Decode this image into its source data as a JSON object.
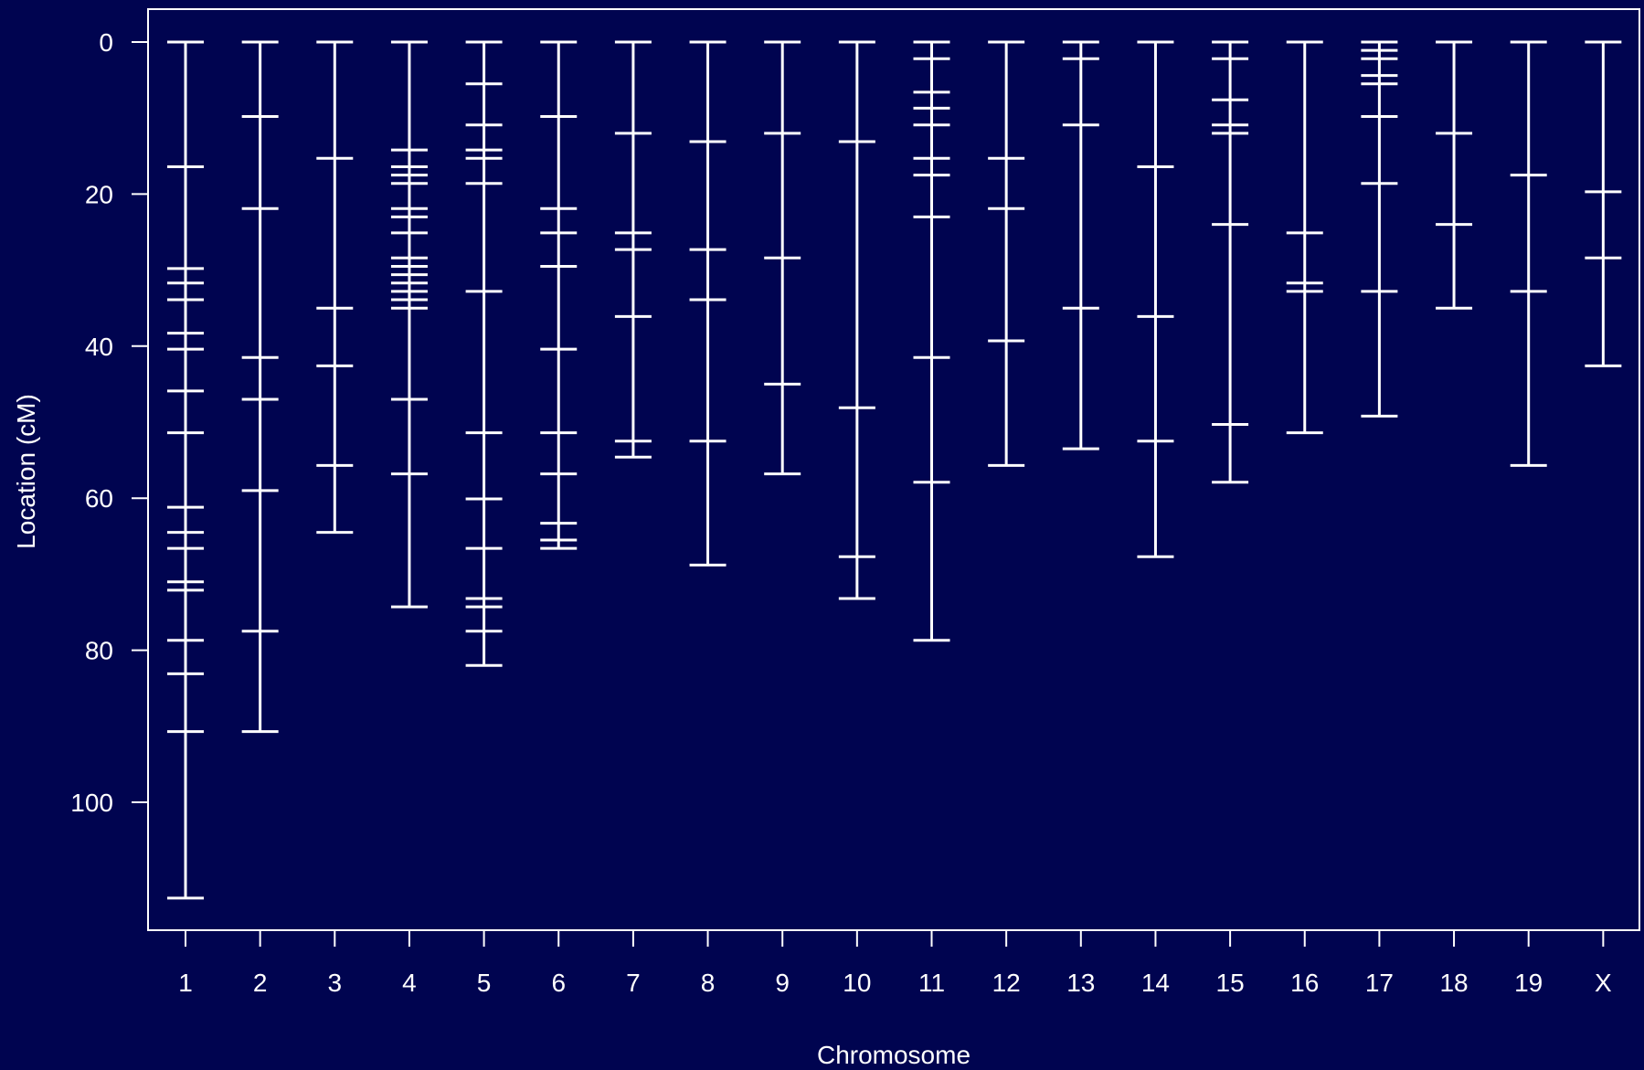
{
  "chart_data": {
    "type": "genetic-map",
    "title": "",
    "xlabel": "Chromosome",
    "ylabel": "Location (cM)",
    "ylim": [
      0,
      117
    ],
    "y_reversed": true,
    "y_ticks": [
      0,
      20,
      40,
      60,
      80,
      100
    ],
    "grid": false,
    "legend": "none",
    "colors": {
      "background": "#000450",
      "foreground": "#ffffff"
    },
    "chromosomes": [
      {
        "name": "1",
        "markers": [
          0,
          16.4,
          29.8,
          31.7,
          33.9,
          38.3,
          40.4,
          45.9,
          51.4,
          61.2,
          64.5,
          66.6,
          71.0,
          72.1,
          78.7,
          83.1,
          90.7,
          112.6
        ]
      },
      {
        "name": "2",
        "markers": [
          0,
          9.8,
          21.9,
          41.5,
          47.0,
          59.0,
          77.5,
          90.7
        ]
      },
      {
        "name": "3",
        "markers": [
          0,
          15.3,
          35.0,
          42.6,
          55.7,
          64.5
        ]
      },
      {
        "name": "4",
        "markers": [
          0,
          14.2,
          16.4,
          17.5,
          18.6,
          21.9,
          23.0,
          25.1,
          28.4,
          29.5,
          30.6,
          31.7,
          32.8,
          33.9,
          35.0,
          47.0,
          56.8,
          74.3
        ]
      },
      {
        "name": "5",
        "markers": [
          0,
          5.5,
          10.9,
          14.2,
          15.3,
          18.6,
          32.8,
          51.4,
          60.1,
          66.6,
          73.2,
          74.3,
          77.5,
          82.0
        ]
      },
      {
        "name": "6",
        "markers": [
          0,
          9.8,
          21.9,
          25.1,
          29.5,
          40.4,
          51.4,
          56.8,
          63.3,
          65.5,
          66.6
        ]
      },
      {
        "name": "7",
        "markers": [
          0,
          12.0,
          25.1,
          27.3,
          36.1,
          52.5,
          54.6
        ]
      },
      {
        "name": "8",
        "markers": [
          0,
          13.1,
          27.3,
          33.9,
          52.5,
          68.8
        ]
      },
      {
        "name": "9",
        "markers": [
          0,
          12.0,
          28.4,
          45.0,
          56.8
        ]
      },
      {
        "name": "10",
        "markers": [
          0,
          13.1,
          48.1,
          67.7,
          73.2
        ]
      },
      {
        "name": "11",
        "markers": [
          0,
          2.2,
          6.6,
          8.7,
          10.9,
          15.3,
          17.5,
          23.0,
          41.5,
          57.9,
          78.7
        ]
      },
      {
        "name": "12",
        "markers": [
          0,
          15.3,
          21.9,
          39.3,
          55.7
        ]
      },
      {
        "name": "13",
        "markers": [
          0,
          2.2,
          10.9,
          35.0,
          53.5
        ]
      },
      {
        "name": "14",
        "markers": [
          0,
          16.4,
          36.1,
          52.5,
          67.7
        ]
      },
      {
        "name": "15",
        "markers": [
          0,
          2.2,
          7.6,
          10.9,
          12.0,
          24.0,
          50.3,
          57.9
        ]
      },
      {
        "name": "16",
        "markers": [
          0,
          25.1,
          31.7,
          32.8,
          51.4
        ]
      },
      {
        "name": "17",
        "markers": [
          0,
          1.1,
          2.2,
          4.4,
          5.5,
          9.8,
          18.6,
          32.8,
          49.2
        ]
      },
      {
        "name": "18",
        "markers": [
          0,
          12.0,
          24.0,
          35.0
        ]
      },
      {
        "name": "19",
        "markers": [
          0,
          17.5,
          32.8,
          55.7
        ]
      },
      {
        "name": "X",
        "markers": [
          0,
          19.7,
          28.4,
          42.6
        ]
      }
    ]
  }
}
